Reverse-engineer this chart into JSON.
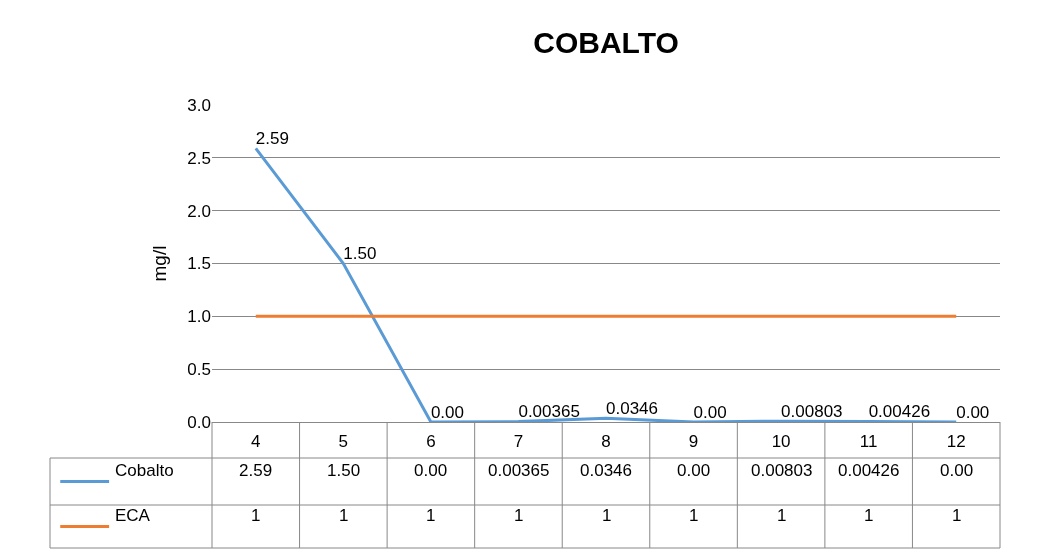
{
  "chart_data": {
    "type": "line",
    "title": "COBALTO",
    "ylabel": "mg/l",
    "categories": [
      "4",
      "5",
      "6",
      "7",
      "8",
      "9",
      "10",
      "11",
      "12"
    ],
    "series": [
      {
        "name": "Cobalto",
        "color": "#5b9bd5",
        "values": [
          2.59,
          1.5,
          0,
          0.00365,
          0.0346,
          0,
          0.00803,
          0.00426,
          0
        ],
        "value_labels": [
          "2.59",
          "1.50",
          "0.00",
          "0.00365",
          "0.0346",
          "0.00",
          "0.00803",
          "0.00426",
          "0.00"
        ],
        "data_labels": true
      },
      {
        "name": "ECA",
        "color": "#ed7d31",
        "values": [
          1,
          1,
          1,
          1,
          1,
          1,
          1,
          1,
          1
        ],
        "value_labels": [
          "1",
          "1",
          "1",
          "1",
          "1",
          "1",
          "1",
          "1",
          "1"
        ]
      }
    ],
    "ylim": [
      0,
      3
    ],
    "yticks": [
      {
        "value": 0,
        "label": "0.0"
      },
      {
        "value": 0.5,
        "label": "0.5"
      },
      {
        "value": 1,
        "label": "1.0"
      },
      {
        "value": 1.5,
        "label": "1.5"
      },
      {
        "value": 2,
        "label": "2.0"
      },
      {
        "value": 2.5,
        "label": "2.5"
      },
      {
        "value": 3,
        "label": "3.0"
      }
    ],
    "grid": "y",
    "legend": "bottom",
    "marker": "none",
    "line_style": "solid"
  }
}
